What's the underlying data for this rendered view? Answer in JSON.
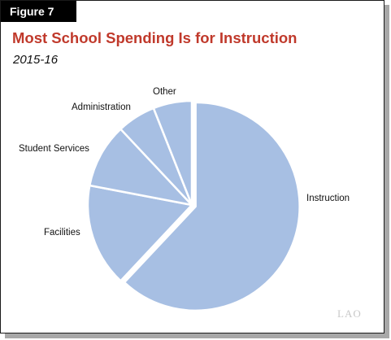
{
  "figure_label": "Figure 7",
  "logo_text": "LAO",
  "chart_data": {
    "type": "pie",
    "title": "Most School Spending Is for Instruction",
    "subtitle": "2015-16",
    "slices": [
      {
        "label": "Instruction",
        "value": 62
      },
      {
        "label": "Facilities",
        "value": 16
      },
      {
        "label": "Student Services",
        "value": 10
      },
      {
        "label": "Administration",
        "value": 6
      },
      {
        "label": "Other",
        "value": 6
      }
    ],
    "colors": {
      "slice_fill": "#a7bfe3",
      "separator": "#ffffff",
      "title": "#c0392b"
    },
    "legend": "none",
    "data_labels": "outside"
  }
}
